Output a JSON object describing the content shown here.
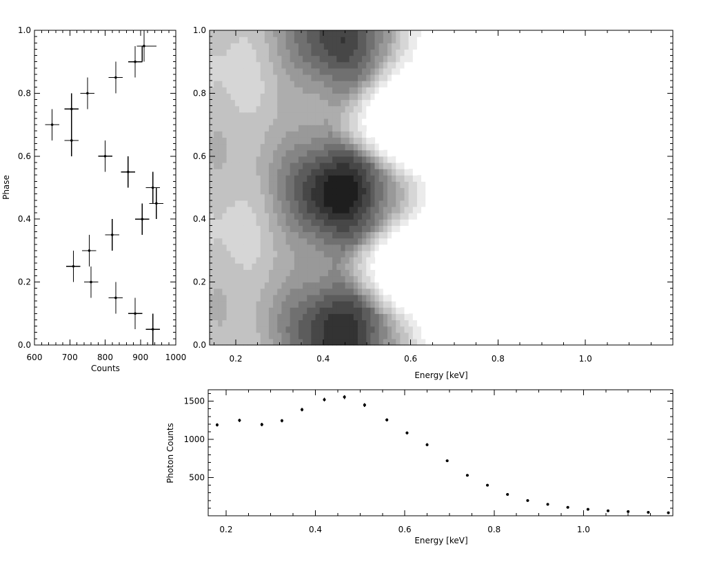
{
  "chart_data": [
    {
      "type": "scatter",
      "xlabel": "Counts",
      "ylabel": "Phase",
      "xlim": [
        600,
        1000
      ],
      "ylim": [
        0,
        1
      ],
      "x_ticks": [
        "600",
        "700",
        "800",
        "900",
        "1000"
      ],
      "y_ticks": [
        "0.0",
        "0.2",
        "0.4",
        "0.6",
        "0.8",
        "1.0"
      ],
      "points": [
        {
          "phase": 0.05,
          "counts": 935,
          "xerr": 20,
          "yerr": 0.05
        },
        {
          "phase": 0.1,
          "counts": 885,
          "xerr": 20,
          "yerr": 0.05
        },
        {
          "phase": 0.15,
          "counts": 830,
          "xerr": 20,
          "yerr": 0.05
        },
        {
          "phase": 0.2,
          "counts": 760,
          "xerr": 20,
          "yerr": 0.05
        },
        {
          "phase": 0.25,
          "counts": 710,
          "xerr": 20,
          "yerr": 0.05
        },
        {
          "phase": 0.3,
          "counts": 755,
          "xerr": 20,
          "yerr": 0.05
        },
        {
          "phase": 0.35,
          "counts": 820,
          "xerr": 20,
          "yerr": 0.05
        },
        {
          "phase": 0.4,
          "counts": 905,
          "xerr": 20,
          "yerr": 0.05
        },
        {
          "phase": 0.45,
          "counts": 945,
          "xerr": 20,
          "yerr": 0.05
        },
        {
          "phase": 0.5,
          "counts": 935,
          "xerr": 20,
          "yerr": 0.05
        },
        {
          "phase": 0.55,
          "counts": 865,
          "xerr": 20,
          "yerr": 0.05
        },
        {
          "phase": 0.6,
          "counts": 800,
          "xerr": 20,
          "yerr": 0.05
        },
        {
          "phase": 0.65,
          "counts": 705,
          "xerr": 20,
          "yerr": 0.05
        },
        {
          "phase": 0.7,
          "counts": 650,
          "xerr": 20,
          "yerr": 0.05
        },
        {
          "phase": 0.75,
          "counts": 705,
          "xerr": 20,
          "yerr": 0.05
        },
        {
          "phase": 0.8,
          "counts": 750,
          "xerr": 20,
          "yerr": 0.05
        },
        {
          "phase": 0.85,
          "counts": 830,
          "xerr": 20,
          "yerr": 0.05
        },
        {
          "phase": 0.9,
          "counts": 885,
          "xerr": 20,
          "yerr": 0.05
        },
        {
          "phase": 0.95,
          "counts": 910,
          "xerr": 20,
          "yerr": 0.05
        }
      ],
      "step_segment": {
        "phase": [
          0.9,
          0.95,
          0.95
        ],
        "counts": [
          905,
          905,
          945
        ]
      }
    },
    {
      "type": "heatmap",
      "xlabel": "Energy [keV]",
      "ylabel": "",
      "xlim": [
        0.14,
        1.2
      ],
      "ylim": [
        0,
        1
      ],
      "x_ticks": [
        "0.2",
        "0.4",
        "0.6",
        "0.8",
        "1.0"
      ],
      "y_ticks": [
        "0.0",
        "0.2",
        "0.4",
        "0.6",
        "0.8",
        "1.0"
      ],
      "colormap": "grayscale, dark = high counts",
      "pulse_peaks": [
        {
          "phase": 0.47,
          "energy": 0.43,
          "intensity": 1.0
        },
        {
          "phase": 0.03,
          "energy": 0.43,
          "intensity": 0.83
        },
        {
          "phase": 0.96,
          "energy": 0.43,
          "intensity": 0.78
        }
      ],
      "cutoff_energy_by_phase": [
        {
          "phase": 0.0,
          "energy": 0.7
        },
        {
          "phase": 0.25,
          "energy": 0.57
        },
        {
          "phase": 0.47,
          "energy": 0.71
        },
        {
          "phase": 0.7,
          "energy": 0.55
        },
        {
          "phase": 0.97,
          "energy": 0.69
        }
      ]
    },
    {
      "type": "scatter",
      "xlabel": "Energy [keV]",
      "ylabel": "Photon Counts",
      "xlim": [
        0.16,
        1.2
      ],
      "ylim": [
        0,
        1650
      ],
      "x_ticks": [
        "0.2",
        "0.4",
        "0.6",
        "0.8",
        "1.0"
      ],
      "y_ticks": [
        "500",
        "1000",
        "1500"
      ],
      "energy": [
        0.18,
        0.23,
        0.28,
        0.325,
        0.37,
        0.42,
        0.465,
        0.51,
        0.56,
        0.605,
        0.65,
        0.695,
        0.74,
        0.785,
        0.83,
        0.875,
        0.92,
        0.965,
        1.01,
        1.055,
        1.1,
        1.145,
        1.19
      ],
      "photon_counts": [
        1190,
        1250,
        1195,
        1245,
        1390,
        1520,
        1555,
        1450,
        1255,
        1085,
        930,
        720,
        530,
        400,
        280,
        200,
        150,
        110,
        85,
        65,
        55,
        45,
        40
      ],
      "yerr": [
        22,
        22,
        22,
        22,
        25,
        25,
        25,
        24,
        22,
        21,
        19,
        17,
        15,
        12,
        10,
        8,
        7,
        6,
        5,
        5,
        4,
        4,
        4
      ]
    }
  ]
}
